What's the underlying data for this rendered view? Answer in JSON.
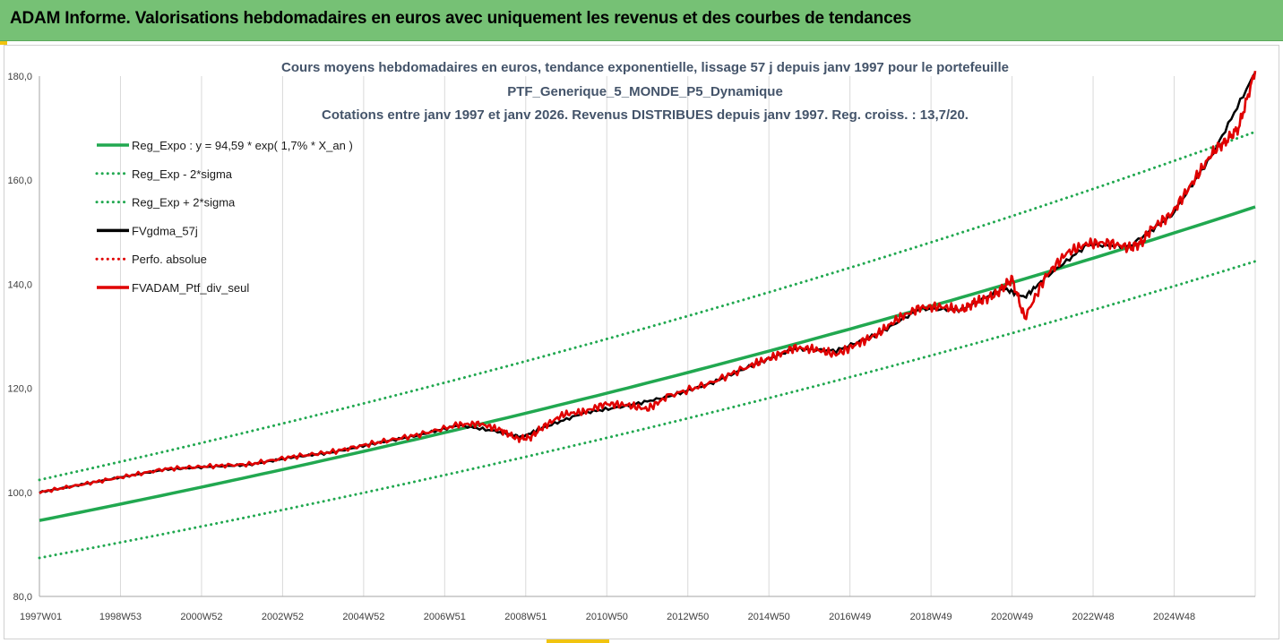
{
  "header": {
    "title": "ADAM Informe. Valorisations hebdomadaires en euros avec uniquement les revenus et des courbes de tendances"
  },
  "colors": {
    "banner": "#76c175",
    "trend": "#21a850",
    "fv": "#000000",
    "perf": "#e00000"
  },
  "chart_data": {
    "type": "line",
    "title_lines": [
      "Cours moyens hebdomadaires  en euros, tendance exponentielle, lissage 57 j depuis janv 1997 pour le portefeuille",
      "PTF_Generique_5_MONDE_P5_Dynamique",
      "Cotations entre janv 1997 et janv 2026. Revenus DISTRIBUES depuis janv 1997. Reg. croiss. : 13,7/20."
    ],
    "x_tick_labels": [
      "1997W01",
      "1998W53",
      "2000W52",
      "2002W52",
      "2004W52",
      "2006W51",
      "2008W51",
      "2010W50",
      "2012W50",
      "2014W50",
      "2016W49",
      "2018W49",
      "2020W49",
      "2022W48",
      "2024W48"
    ],
    "x_range_years": [
      1997.0,
      2026.0
    ],
    "ylim": [
      80,
      180
    ],
    "y_ticks": [
      "80,0",
      "100,0",
      "120,0",
      "140,0",
      "160,0",
      "180,0"
    ],
    "y_tick_values": [
      80,
      100,
      120,
      140,
      160,
      180
    ],
    "legend": [
      {
        "label": "Reg_Expo : y = 94,59 * exp( 1,7% *  X_an )",
        "style": "solid",
        "color": "#21a850"
      },
      {
        "label": "Reg_Exp - 2*sigma",
        "style": "dotted",
        "color": "#21a850"
      },
      {
        "label": "Reg_Exp + 2*sigma",
        "style": "dotted",
        "color": "#21a850"
      },
      {
        "label": "FVgdma_57j",
        "style": "solid",
        "color": "#000000"
      },
      {
        "label": "Perfo. absolue",
        "style": "dotted",
        "color": "#e00000"
      },
      {
        "label": "FVADAM_Ptf_div_seul",
        "style": "solid",
        "color": "#e00000"
      }
    ],
    "regression": {
      "a": 94.59,
      "growth_rate": 0.017
    },
    "sigma_band": {
      "lower_start": 87.4,
      "lower_end": 144.4,
      "upper_start": 102.4,
      "upper_end": 169.3
    },
    "series": [
      {
        "name": "FVADAM_Ptf_div_seul",
        "x": [
          1997.0,
          1998.0,
          1999.0,
          2000.0,
          2001.0,
          2002.0,
          2003.0,
          2004.0,
          2005.0,
          2006.0,
          2007.0,
          2007.5,
          2008.0,
          2008.4,
          2008.7,
          2009.0,
          2009.5,
          2010.0,
          2010.5,
          2011.0,
          2011.5,
          2012.0,
          2013.0,
          2014.0,
          2014.5,
          2015.0,
          2015.5,
          2016.0,
          2016.5,
          2017.0,
          2017.5,
          2018.0,
          2018.5,
          2019.0,
          2019.3,
          2019.5,
          2019.8,
          2020.0,
          2020.2,
          2020.5,
          2021.0,
          2021.5,
          2022.0,
          2022.5,
          2023.0,
          2023.3,
          2023.5,
          2024.0,
          2024.5,
          2025.0,
          2025.3,
          2025.6,
          2026.0
        ],
        "values": [
          100.0,
          101.5,
          103.0,
          104.5,
          105.0,
          105.4,
          106.8,
          107.8,
          109.5,
          111.0,
          113.0,
          113.2,
          112.0,
          110.3,
          110.5,
          112.5,
          115.0,
          115.5,
          117.0,
          116.8,
          116.0,
          118.5,
          121.0,
          124.5,
          126.0,
          127.8,
          127.5,
          126.5,
          128.5,
          130.5,
          133.5,
          135.5,
          135.7,
          135.0,
          136.5,
          137.0,
          138.0,
          139.5,
          141.0,
          133.5,
          141.5,
          146.0,
          147.8,
          148.0,
          147.0,
          148.0,
          150.5,
          153.5,
          159.5,
          165.5,
          167.5,
          170.0,
          181.0
        ]
      },
      {
        "name": "FVgdma_57j",
        "x": [
          1997.0,
          1998.0,
          1999.0,
          2000.0,
          2001.0,
          2002.0,
          2003.0,
          2004.0,
          2005.0,
          2006.0,
          2007.0,
          2008.0,
          2008.5,
          2009.0,
          2010.0,
          2011.0,
          2012.0,
          2013.0,
          2014.0,
          2015.0,
          2016.0,
          2017.0,
          2018.0,
          2019.0,
          2020.0,
          2020.5,
          2021.0,
          2022.0,
          2023.0,
          2024.0,
          2025.0,
          2026.0
        ],
        "values": [
          100.0,
          101.5,
          103.0,
          104.4,
          104.9,
          105.3,
          106.7,
          107.7,
          109.4,
          110.9,
          112.9,
          111.6,
          110.6,
          112.4,
          115.3,
          116.6,
          118.4,
          120.9,
          124.4,
          127.6,
          127.2,
          130.4,
          135.3,
          135.1,
          139.2,
          137.5,
          141.3,
          147.6,
          147.3,
          153.2,
          165.2,
          180.7
        ]
      }
    ]
  }
}
